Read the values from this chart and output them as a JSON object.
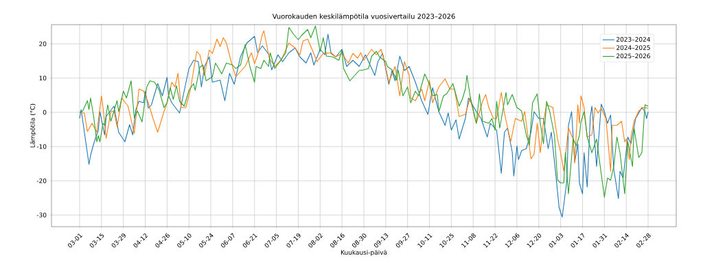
{
  "chart_data": {
    "type": "line",
    "title": "Vuorokauden keskilämpötila vuosivertailu 2023–2026",
    "xlabel": "Kuukausi-päivä",
    "ylabel": "Lämpötila (°C)",
    "xlim": [
      "2023-02-11",
      "2024-03-17"
    ],
    "ylim": [
      -33.4,
      25.6
    ],
    "xticks": [
      {
        "value": "2023-03-01",
        "label": "03-01"
      },
      {
        "value": "2023-03-15",
        "label": "03-15"
      },
      {
        "value": "2023-03-29",
        "label": "03-29"
      },
      {
        "value": "2023-04-12",
        "label": "04-12"
      },
      {
        "value": "2023-04-26",
        "label": "04-26"
      },
      {
        "value": "2023-05-10",
        "label": "05-10"
      },
      {
        "value": "2023-05-24",
        "label": "05-24"
      },
      {
        "value": "2023-06-07",
        "label": "06-07"
      },
      {
        "value": "2023-06-21",
        "label": "06-21"
      },
      {
        "value": "2023-07-05",
        "label": "07-05"
      },
      {
        "value": "2023-07-19",
        "label": "07-19"
      },
      {
        "value": "2023-08-02",
        "label": "08-02"
      },
      {
        "value": "2023-08-16",
        "label": "08-16"
      },
      {
        "value": "2023-08-30",
        "label": "08-30"
      },
      {
        "value": "2023-09-13",
        "label": "09-13"
      },
      {
        "value": "2023-09-27",
        "label": "09-27"
      },
      {
        "value": "2023-10-11",
        "label": "10-11"
      },
      {
        "value": "2023-10-25",
        "label": "10-25"
      },
      {
        "value": "2023-11-08",
        "label": "11-08"
      },
      {
        "value": "2023-11-22",
        "label": "11-22"
      },
      {
        "value": "2023-12-06",
        "label": "12-06"
      },
      {
        "value": "2023-12-20",
        "label": "12-20"
      },
      {
        "value": "2024-01-03",
        "label": "01-03"
      },
      {
        "value": "2024-01-17",
        "label": "01-17"
      },
      {
        "value": "2024-01-31",
        "label": "01-31"
      },
      {
        "value": "2024-02-14",
        "label": "02-14"
      },
      {
        "value": "2024-02-28",
        "label": "02-28"
      }
    ],
    "yticks": [
      -30,
      -20,
      -10,
      0,
      10,
      20
    ],
    "grid": true,
    "legend": "top right",
    "series": [
      {
        "name": "2023–2024",
        "color": "#1f77b4",
        "x": [
          "2023-03-01",
          "2023-03-02",
          "2023-03-07",
          "2023-03-08",
          "2023-03-10",
          "2023-03-13",
          "2023-03-14",
          "2023-03-17",
          "2023-03-18",
          "2023-03-23",
          "2023-03-26",
          "2023-03-30",
          "2023-04-02",
          "2023-04-04",
          "2023-04-06",
          "2023-04-08",
          "2023-04-11",
          "2023-04-12",
          "2023-04-14",
          "2023-04-16",
          "2023-04-20",
          "2023-04-23",
          "2023-04-26",
          "2023-04-27",
          "2023-04-29",
          "2023-05-04",
          "2023-05-10",
          "2023-05-13",
          "2023-05-16",
          "2023-05-18",
          "2023-05-20",
          "2023-05-23",
          "2023-05-25",
          "2023-05-30",
          "2023-06-02",
          "2023-06-05",
          "2023-06-08",
          "2023-06-12",
          "2023-06-16",
          "2023-06-21",
          "2023-06-23",
          "2023-06-26",
          "2023-06-30",
          "2023-07-02",
          "2023-07-06",
          "2023-07-09",
          "2023-07-13",
          "2023-07-17",
          "2023-07-20",
          "2023-07-24",
          "2023-07-27",
          "2023-07-29",
          "2023-08-02",
          "2023-08-05",
          "2023-08-07",
          "2023-08-09",
          "2023-08-12",
          "2023-08-16",
          "2023-08-19",
          "2023-08-23",
          "2023-08-27",
          "2023-08-31",
          "2023-09-06",
          "2023-09-08",
          "2023-09-11",
          "2023-09-15",
          "2023-09-17",
          "2023-09-19",
          "2023-09-22",
          "2023-09-25",
          "2023-09-28",
          "2023-10-02",
          "2023-10-06",
          "2023-10-10",
          "2023-10-13",
          "2023-10-17",
          "2023-10-21",
          "2023-10-23",
          "2023-10-25",
          "2023-10-28",
          "2023-10-30",
          "2023-11-03",
          "2023-11-05",
          "2023-11-10",
          "2023-11-13",
          "2023-11-17",
          "2023-11-19",
          "2023-11-23",
          "2023-11-26",
          "2023-11-28",
          "2023-11-30",
          "2023-12-03",
          "2023-12-04",
          "2023-12-06",
          "2023-12-07",
          "2023-12-09",
          "2023-12-12",
          "2023-12-15",
          "2023-12-17",
          "2023-12-20",
          "2023-12-23",
          "2023-12-26",
          "2023-12-28",
          "2023-12-31",
          "2024-01-02",
          "2024-01-04",
          "2024-01-07",
          "2024-01-08",
          "2024-01-10",
          "2024-01-12",
          "2024-01-14",
          "2024-01-15",
          "2024-01-17",
          "2024-01-18",
          "2024-01-20",
          "2024-01-22",
          "2024-01-23",
          "2024-01-26",
          "2024-01-29",
          "2024-01-31",
          "2024-02-02",
          "2024-02-04",
          "2024-02-06",
          "2024-02-09",
          "2024-02-10",
          "2024-02-12",
          "2024-02-15",
          "2024-02-17",
          "2024-02-20",
          "2024-02-24",
          "2024-02-26",
          "2024-02-27",
          "2024-02-28"
        ],
        "values": [
          -1.8,
          0.8,
          -15.2,
          -12.6,
          -9.2,
          -5.2,
          0.2,
          -6.6,
          -1.2,
          1.8,
          -5.8,
          -8.6,
          -3.6,
          -6.6,
          0.8,
          3.2,
          2.8,
          6.2,
          1.2,
          2.2,
          8.4,
          4.8,
          10.2,
          4.8,
          2.8,
          -0.2,
          12.8,
          15.2,
          14.8,
          7.4,
          13.4,
          16.2,
          8.8,
          9.4,
          3.4,
          11.4,
          8.2,
          16.2,
          20.2,
          22.2,
          17.4,
          19.4,
          17,
          12.4,
          16.8,
          14.8,
          17.4,
          18.8,
          16.2,
          14.4,
          17.4,
          13.8,
          18.4,
          16.8,
          22.8,
          17.2,
          16.2,
          18.4,
          13.4,
          15.2,
          13.4,
          16.8,
          10.8,
          14.8,
          17.2,
          8.2,
          12.2,
          9.2,
          16.4,
          12.2,
          13.4,
          8.8,
          3.4,
          -0.6,
          7.2,
          0.2,
          -3.8,
          -0.2,
          -5.2,
          -2.2,
          -7.8,
          -1.8,
          4.2,
          0.2,
          -1.8,
          -7.2,
          -3.2,
          -5.2,
          -17.8,
          -5.8,
          -4.6,
          -11.6,
          -18.6,
          -9.8,
          -13.8,
          -11.2,
          -10.6,
          -5.8,
          0.2,
          -1.8,
          -1.8,
          -10.6,
          -5.8,
          -18.6,
          -27.8,
          -30.6,
          -19.8,
          -3.8,
          0.2,
          -14.6,
          -9.2,
          -20.6,
          -23.8,
          -11.8,
          -21.8,
          -1.2,
          1.8,
          -15.8,
          2.4,
          0.2,
          -3.2,
          -0.8,
          -16.6,
          -25.2,
          -17.2,
          -19.2,
          -7.2,
          -9.2,
          -1.8,
          1.4,
          0.2,
          -1.8,
          0.2
        ]
      },
      {
        "name": "2024–2025",
        "color": "#ff7f0e",
        "x": [
          "2023-03-01",
          "2023-03-04",
          "2023-03-06",
          "2023-03-09",
          "2023-03-12",
          "2023-03-15",
          "2023-03-16",
          "2023-03-18",
          "2023-03-21",
          "2023-03-23",
          "2023-03-25",
          "2023-03-28",
          "2023-04-01",
          "2023-04-05",
          "2023-04-08",
          "2023-04-11",
          "2023-04-14",
          "2023-04-17",
          "2023-04-20",
          "2023-04-24",
          "2023-04-26",
          "2023-04-29",
          "2023-05-01",
          "2023-05-03",
          "2023-05-05",
          "2023-05-08",
          "2023-05-11",
          "2023-05-15",
          "2023-05-17",
          "2023-05-20",
          "2023-05-23",
          "2023-05-25",
          "2023-05-28",
          "2023-05-30",
          "2023-06-01",
          "2023-06-03",
          "2023-06-06",
          "2023-06-09",
          "2023-06-15",
          "2023-06-19",
          "2023-06-21",
          "2023-06-23",
          "2023-06-26",
          "2023-06-27",
          "2023-06-30",
          "2023-07-01",
          "2023-07-04",
          "2023-07-08",
          "2023-07-13",
          "2023-07-17",
          "2023-07-20",
          "2023-07-22",
          "2023-07-25",
          "2023-07-28",
          "2023-07-31",
          "2023-08-04",
          "2023-08-09",
          "2023-08-12",
          "2023-08-16",
          "2023-08-20",
          "2023-08-23",
          "2023-08-26",
          "2023-08-28",
          "2023-08-30",
          "2023-09-04",
          "2023-09-07",
          "2023-09-10",
          "2023-09-12",
          "2023-09-15",
          "2023-09-19",
          "2023-09-22",
          "2023-09-25",
          "2023-09-28",
          "2023-09-29",
          "2023-10-02",
          "2023-10-06",
          "2023-10-08",
          "2023-10-11",
          "2023-10-13",
          "2023-10-17",
          "2023-10-21",
          "2023-10-24",
          "2023-10-27",
          "2023-10-30",
          "2023-11-03",
          "2023-11-06",
          "2023-11-10",
          "2023-11-14",
          "2023-11-16",
          "2023-11-18",
          "2023-11-21",
          "2023-11-23",
          "2023-11-26",
          "2023-11-28",
          "2023-12-02",
          "2023-12-05",
          "2023-12-09",
          "2023-12-11",
          "2023-12-15",
          "2023-12-17",
          "2023-12-19",
          "2023-12-21",
          "2023-12-23",
          "2023-12-25",
          "2023-12-29",
          "2024-01-01",
          "2024-01-03",
          "2024-01-05",
          "2024-01-08",
          "2024-01-11",
          "2024-01-12",
          "2024-01-14",
          "2024-01-15",
          "2024-01-16",
          "2024-01-18",
          "2024-01-20",
          "2024-01-23",
          "2024-01-25",
          "2024-01-27",
          "2024-01-29",
          "2024-02-01",
          "2024-02-04",
          "2024-02-05",
          "2024-02-08",
          "2024-02-11",
          "2024-02-13",
          "2024-02-14",
          "2024-02-16",
          "2024-02-17",
          "2024-02-19",
          "2024-02-22",
          "2024-02-25",
          "2024-02-28"
        ],
        "values": [
          0,
          -0.2,
          -5.6,
          -3.2,
          -5.8,
          4.8,
          1.4,
          -7.6,
          0.2,
          0.4,
          -4.2,
          4.2,
          1.8,
          -6.2,
          6.8,
          6.2,
          2.8,
          -1.8,
          -5.8,
          0.2,
          2.8,
          8.8,
          7.4,
          11.4,
          1.4,
          1.4,
          6.8,
          17.8,
          16.8,
          10.8,
          18.2,
          17.2,
          21.4,
          19.2,
          21.8,
          20.2,
          14.8,
          10.4,
          13.4,
          17.4,
          14.2,
          16.8,
          22.8,
          23.8,
          16.8,
          15.4,
          13.4,
          15.2,
          20.2,
          18.8,
          16.8,
          20.8,
          21.4,
          18.2,
          14.8,
          17.2,
          17.4,
          16.2,
          17.2,
          14.4,
          17.2,
          15.8,
          17.4,
          15.2,
          18.4,
          16.8,
          18.4,
          15.2,
          8.8,
          13.4,
          4.8,
          14.8,
          10.8,
          4.2,
          3.4,
          6.8,
          3.4,
          9.4,
          2.8,
          7.4,
          9.8,
          6.8,
          6.8,
          -1.2,
          -0.6,
          4.2,
          -3.2,
          3.2,
          5.2,
          1.4,
          -1.8,
          -1.8,
          5.8,
          -0.2,
          -8.6,
          -1.8,
          -2.6,
          0.2,
          -13.6,
          -12.2,
          -3.2,
          -11.8,
          -2.6,
          2.2,
          1.4,
          -7.8,
          -11.8,
          -17.2,
          -4.6,
          -7.8,
          -14.8,
          2.2,
          -3.2,
          4.8,
          1.4,
          -7.2,
          -6.6,
          1.4,
          -0.2,
          1.2,
          -1.8,
          -17.2,
          -3.8,
          -3.8,
          -2.6,
          -8.6,
          -7.8,
          -13.8,
          -7.2,
          -2.6,
          0.4,
          1.4,
          1.2
        ]
      },
      {
        "name": "2025–2026",
        "color": "#2ca02c",
        "x": [
          "2023-03-01",
          "2023-03-03",
          "2023-03-06",
          "2023-03-07",
          "2023-03-08",
          "2023-03-10",
          "2023-03-12",
          "2023-03-13",
          "2023-03-14",
          "2023-03-16",
          "2023-03-17",
          "2023-03-19",
          "2023-03-21",
          "2023-03-25",
          "2023-03-26",
          "2023-03-29",
          "2023-03-31",
          "2023-04-03",
          "2023-04-05",
          "2023-04-07",
          "2023-04-10",
          "2023-04-13",
          "2023-04-15",
          "2023-04-18",
          "2023-04-21",
          "2023-04-24",
          "2023-04-26",
          "2023-04-28",
          "2023-04-30",
          "2023-05-02",
          "2023-05-04",
          "2023-05-07",
          "2023-05-10",
          "2023-05-13",
          "2023-05-14",
          "2023-05-17",
          "2023-05-19",
          "2023-05-21",
          "2023-05-25",
          "2023-05-27",
          "2023-05-31",
          "2023-06-03",
          "2023-06-07",
          "2023-06-09",
          "2023-06-12",
          "2023-06-15",
          "2023-06-18",
          "2023-06-21",
          "2023-06-22",
          "2023-06-25",
          "2023-06-27",
          "2023-06-30",
          "2023-07-01",
          "2023-07-04",
          "2023-07-08",
          "2023-07-11",
          "2023-07-13",
          "2023-07-16",
          "2023-07-19",
          "2023-07-21",
          "2023-07-25",
          "2023-07-27",
          "2023-07-30",
          "2023-08-02",
          "2023-08-04",
          "2023-08-06",
          "2023-08-10",
          "2023-08-14",
          "2023-08-16",
          "2023-08-17",
          "2023-08-21",
          "2023-08-23",
          "2023-08-27",
          "2023-08-30",
          "2023-09-02",
          "2023-09-04",
          "2023-09-07",
          "2023-09-09",
          "2023-09-13",
          "2023-09-14",
          "2023-09-17",
          "2023-09-20",
          "2023-09-21",
          "2023-09-24",
          "2023-09-27",
          "2023-09-29",
          "2023-10-02",
          "2023-10-04",
          "2023-10-08",
          "2023-10-11",
          "2023-10-13",
          "2023-10-16",
          "2023-10-17",
          "2023-10-20",
          "2023-10-22",
          "2023-10-26",
          "2023-10-30",
          "2023-11-01",
          "2023-11-03",
          "2023-11-04",
          "2023-11-06",
          "2023-11-10",
          "2023-11-12",
          "2023-11-14",
          "2023-11-18",
          "2023-11-20",
          "2023-11-22",
          "2023-11-23",
          "2023-11-25",
          "2023-11-29",
          "2023-11-30",
          "2023-12-03",
          "2023-12-06",
          "2023-12-09",
          "2023-12-12",
          "2023-12-14",
          "2023-12-16",
          "2023-12-19",
          "2023-12-21",
          "2023-12-23",
          "2023-12-25",
          "2023-12-27",
          "2023-12-30",
          "2024-01-01",
          "2024-01-03",
          "2024-01-05",
          "2024-01-06",
          "2024-01-08",
          "2024-01-11",
          "2024-01-13",
          "2024-01-15",
          "2024-01-16",
          "2024-01-18",
          "2024-01-20",
          "2024-01-23",
          "2024-01-26",
          "2024-01-28",
          "2024-01-31",
          "2024-02-02",
          "2024-02-04",
          "2024-02-06",
          "2024-02-08",
          "2024-02-10",
          "2024-02-13",
          "2024-02-15",
          "2024-02-18",
          "2024-02-19",
          "2024-02-22",
          "2024-02-24",
          "2024-02-25",
          "2024-02-26",
          "2024-02-28"
        ],
        "values": [
          0,
          0.4,
          3.4,
          0.8,
          4.2,
          -1.2,
          -8.6,
          -6.8,
          -8.6,
          -3.2,
          -3.8,
          2.2,
          -2.6,
          3.4,
          0.2,
          6.2,
          4.2,
          9.2,
          -1.6,
          0.4,
          -2.8,
          7.4,
          9.2,
          8.8,
          6.4,
          1.4,
          2.8,
          7.2,
          3.8,
          7.8,
          3.2,
          1.8,
          6.4,
          8.4,
          6.4,
          13.2,
          13.8,
          9.2,
          10.4,
          14.4,
          11.2,
          14.4,
          13.8,
          12.8,
          13.8,
          19.8,
          13.4,
          8.8,
          13.4,
          12.8,
          15.2,
          13.4,
          17.4,
          12.8,
          15.4,
          17.4,
          24.8,
          22.8,
          21.2,
          22.4,
          24.2,
          21.8,
          25.2,
          17.8,
          21.8,
          16.4,
          16.2,
          15.2,
          18.2,
          12.8,
          9.2,
          10.2,
          12.2,
          12.4,
          12.8,
          16.4,
          17.8,
          16.2,
          14.8,
          13.4,
          12.4,
          9.4,
          12.4,
          4.8,
          7.4,
          2.8,
          6.2,
          4.8,
          11.2,
          8.2,
          4.8,
          5.2,
          0.2,
          4.8,
          5.4,
          8.4,
          1.8,
          3.8,
          6.8,
          10.8,
          4.8,
          -3.2,
          5.4,
          -2.6,
          -3.2,
          -1.8,
          -5.2,
          3.2,
          -4.6,
          5.8,
          2.2,
          5.2,
          1.4,
          0.4,
          -6.6,
          -9.6,
          2.8,
          5.4,
          -3.2,
          -9.2,
          3.2,
          0.2,
          -6.6,
          -19.8,
          -20.6,
          -20.6,
          -11.8,
          -23.8,
          -7.8,
          -9.8,
          -6.8,
          -2.8,
          0.2,
          -7.2,
          -11.8,
          -7.8,
          -14.6,
          -24.8,
          -19.2,
          -19.8,
          -15.8,
          -7.2,
          -11.8,
          -23.8,
          -8.6,
          -15.8,
          -4.6,
          -13.2,
          -11.8,
          -4.6,
          2.2,
          1.8
        ]
      }
    ]
  }
}
